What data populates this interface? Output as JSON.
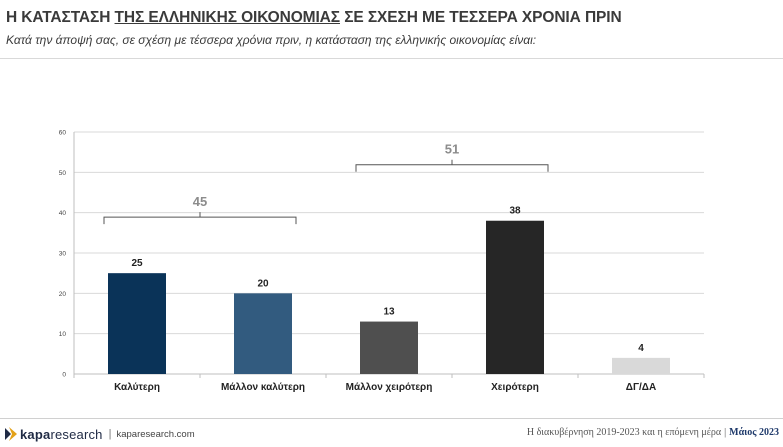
{
  "header": {
    "title_part1": "Η ΚΑΤΑΣΤΑΣΗ ",
    "title_part2": "ΤΗΣ ΕΛΛΗΝΙΚΗΣ ΟΙΚΟΝΟΜΙΑΣ",
    "title_part3": " ΣΕ ΣΧΕΣΗ ΜΕ ΤΕΣΣΕΡΑ ΧΡΟΝΙΑ ΠΡΙΝ",
    "subtitle": "Κατά την άποψή σας, σε σχέση με τέσσερα χρόνια πριν, η κατάσταση της ελληνικής οικονομίας είναι:"
  },
  "chart_data": {
    "type": "bar",
    "categories": [
      "Καλύτερη",
      "Μάλλον καλύτερη",
      "Μάλλον χειρότερη",
      "Χειρότερη",
      "ΔΓ/ΔΑ"
    ],
    "values": [
      25,
      20,
      13,
      38,
      4
    ],
    "colors": [
      "#0a3358",
      "#325b7f",
      "#4f4f4f",
      "#262626",
      "#d9d9d9"
    ],
    "ylim": [
      0,
      60
    ],
    "yticks": [
      0,
      10,
      20,
      30,
      40,
      50,
      60
    ],
    "grid": true,
    "brackets": [
      {
        "label": "45",
        "from": 0,
        "to": 1
      },
      {
        "label": "51",
        "from": 2,
        "to": 3
      }
    ]
  },
  "footer": {
    "logo_a": "kapa",
    "logo_b": "research",
    "separator": "|",
    "site": "kaparesearch.com",
    "right_text": "Η διακυβέρνηση 2019-2023 και η επόμενη μέρα",
    "right_sep": "|",
    "right_date": "Μάιος 2023",
    "brand_colors": {
      "navy": "#1f2a44",
      "gold": "#e3a21a"
    }
  }
}
